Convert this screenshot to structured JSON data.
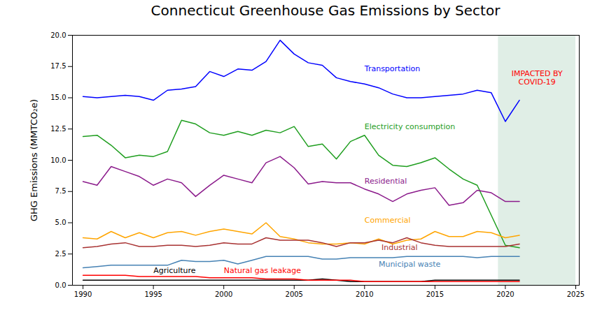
{
  "chart_data": {
    "type": "line",
    "title": "Connecticut Greenhouse Gas Emissions by Sector",
    "y_label": "GHG Emissions (MMTCO₂e)",
    "x": [
      1990,
      1991,
      1992,
      1993,
      1994,
      1995,
      1996,
      1997,
      1998,
      1999,
      2000,
      2001,
      2002,
      2003,
      2004,
      2005,
      2006,
      2007,
      2008,
      2009,
      2010,
      2011,
      2012,
      2013,
      2014,
      2015,
      2016,
      2017,
      2018,
      2019,
      2020,
      2021
    ],
    "series": [
      {
        "name": "Transportation",
        "color": "#0000ff",
        "values": [
          15.1,
          15.0,
          15.1,
          15.2,
          15.1,
          14.8,
          15.6,
          15.7,
          15.9,
          17.1,
          16.7,
          17.3,
          17.2,
          17.9,
          19.6,
          18.5,
          17.8,
          17.6,
          16.6,
          16.3,
          16.1,
          15.8,
          15.3,
          15.0,
          15.0,
          15.1,
          15.2,
          15.3,
          15.6,
          15.4,
          13.1,
          14.8
        ]
      },
      {
        "name": "Electricity consumption",
        "color": "#1f9e1f",
        "values": [
          11.9,
          12.0,
          11.2,
          10.2,
          10.4,
          10.3,
          10.7,
          13.2,
          12.9,
          12.2,
          12.0,
          12.3,
          12.0,
          12.4,
          12.2,
          12.7,
          11.1,
          11.3,
          10.1,
          11.5,
          12.0,
          10.4,
          9.6,
          9.5,
          9.8,
          10.2,
          9.3,
          8.5,
          8.0,
          5.6,
          3.2,
          3.0
        ]
      },
      {
        "name": "Residential",
        "color": "#8b1a8b",
        "values": [
          8.3,
          8.0,
          9.5,
          9.1,
          8.7,
          8.0,
          8.5,
          8.2,
          7.1,
          8.0,
          8.8,
          8.5,
          8.2,
          9.8,
          10.3,
          9.4,
          8.1,
          8.3,
          8.2,
          8.2,
          7.7,
          7.3,
          6.7,
          7.3,
          7.6,
          7.8,
          6.4,
          6.6,
          7.6,
          7.4,
          6.7,
          6.7
        ]
      },
      {
        "name": "Commercial",
        "color": "#ffa500",
        "values": [
          3.8,
          3.7,
          4.3,
          3.8,
          4.2,
          3.8,
          4.2,
          4.3,
          4.0,
          4.3,
          4.5,
          4.3,
          4.1,
          5.0,
          3.9,
          3.7,
          3.4,
          3.3,
          3.3,
          3.4,
          3.3,
          3.7,
          3.3,
          3.6,
          3.7,
          4.3,
          3.9,
          3.9,
          4.3,
          4.2,
          3.8,
          4.0
        ]
      },
      {
        "name": "Industrial",
        "color": "#a83232",
        "values": [
          3.0,
          3.1,
          3.3,
          3.4,
          3.1,
          3.1,
          3.2,
          3.2,
          3.1,
          3.2,
          3.4,
          3.3,
          3.3,
          3.8,
          3.6,
          3.6,
          3.6,
          3.4,
          3.1,
          3.4,
          3.4,
          3.6,
          3.4,
          3.8,
          3.4,
          3.2,
          3.1,
          3.1,
          3.1,
          3.1,
          3.1,
          3.3
        ]
      },
      {
        "name": "Municipal waste",
        "color": "#4682b4",
        "values": [
          1.4,
          1.5,
          1.6,
          1.6,
          1.6,
          1.6,
          1.6,
          2.0,
          1.9,
          1.9,
          2.0,
          1.7,
          2.0,
          2.3,
          2.3,
          2.3,
          2.3,
          2.1,
          2.1,
          2.2,
          2.2,
          2.2,
          2.2,
          2.3,
          2.3,
          2.3,
          2.3,
          2.3,
          2.2,
          2.3,
          2.3,
          2.3
        ]
      },
      {
        "name": "Agriculture",
        "color": "#000000",
        "values": [
          0.4,
          0.4,
          0.4,
          0.4,
          0.4,
          0.4,
          0.4,
          0.4,
          0.4,
          0.4,
          0.4,
          0.4,
          0.4,
          0.4,
          0.4,
          0.4,
          0.4,
          0.5,
          0.4,
          0.3,
          0.3,
          0.3,
          0.3,
          0.3,
          0.3,
          0.4,
          0.4,
          0.4,
          0.4,
          0.4,
          0.4,
          0.4
        ]
      },
      {
        "name": "Natural gas leakage",
        "color": "#ff0000",
        "values": [
          0.8,
          0.8,
          0.8,
          0.8,
          0.7,
          0.7,
          0.7,
          0.7,
          0.7,
          0.6,
          0.6,
          0.6,
          0.6,
          0.5,
          0.5,
          0.5,
          0.4,
          0.4,
          0.4,
          0.4,
          0.3,
          0.3,
          0.3,
          0.3,
          0.3,
          0.3,
          0.3,
          0.3,
          0.3,
          0.3,
          0.3,
          0.3
        ]
      }
    ],
    "shaded_region": {
      "x": [
        2019.5,
        2025
      ],
      "label": "IMPACTED BY\nCOVID-19",
      "color": "#2e8b57"
    },
    "xlim": [
      1989.25,
      2025.25
    ],
    "xticks": [
      1990,
      1995,
      2000,
      2005,
      2010,
      2015,
      2020,
      2025
    ],
    "ylim": [
      0,
      20
    ],
    "yticks": [
      {
        "value": 0,
        "label": "0.0"
      },
      2.5,
      {
        "value": 5,
        "label": "5.0"
      },
      7.5,
      {
        "value": 10,
        "label": "10.0"
      },
      12.5,
      {
        "value": 15,
        "label": "15.0"
      },
      17.5,
      {
        "value": 20,
        "label": "20.0"
      }
    ],
    "grid": false
  }
}
